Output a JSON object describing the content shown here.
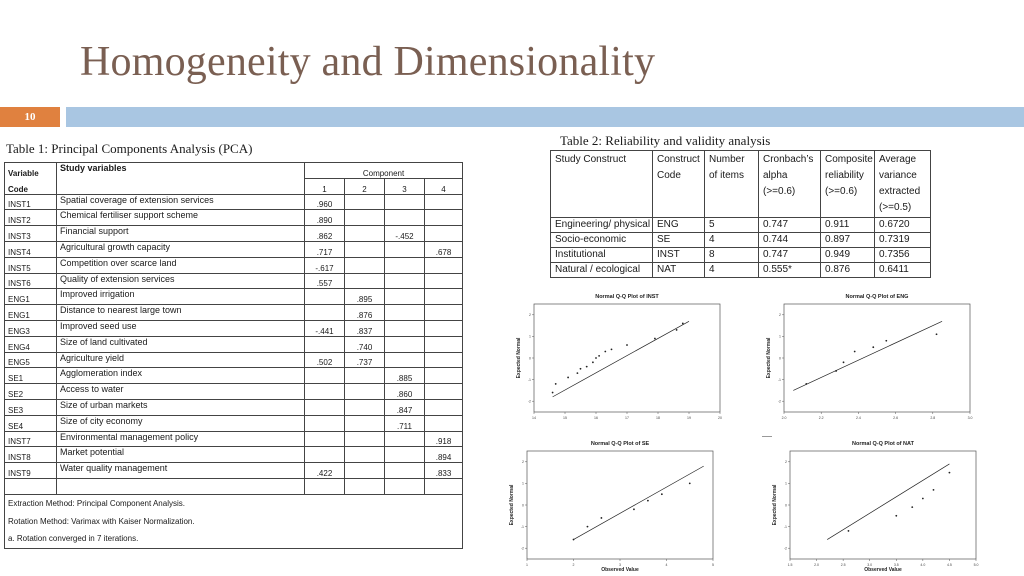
{
  "slide": {
    "title": "Homogeneity and Dimensionality",
    "number": "10"
  },
  "pca": {
    "caption": "Table 1: Principal Components Analysis (PCA)",
    "header": {
      "variable": "Variable",
      "code": "Code",
      "study": "Study variables",
      "component": "Component",
      "cols": [
        "1",
        "2",
        "3",
        "4"
      ]
    },
    "rows": [
      {
        "code": "INST1",
        "label": "Spatial coverage of extension services",
        "vals": [
          ".960",
          "",
          "",
          ""
        ]
      },
      {
        "code": "INST2",
        "label": "Chemical fertiliser support scheme",
        "vals": [
          ".890",
          "",
          "",
          ""
        ]
      },
      {
        "code": "INST3",
        "label": "Financial support",
        "vals": [
          ".862",
          "",
          "-.452",
          ""
        ]
      },
      {
        "code": "INST4",
        "label": "Agricultural growth capacity",
        "vals": [
          ".717",
          "",
          "",
          ".678"
        ]
      },
      {
        "code": "INST5",
        "label": "Competition over scarce land",
        "vals": [
          "-.617",
          "",
          "",
          ""
        ]
      },
      {
        "code": "INST6",
        "label": "Quality of extension services",
        "vals": [
          ".557",
          "",
          "",
          ""
        ]
      },
      {
        "code": "ENG1",
        "label": "Improved irrigation",
        "vals": [
          "",
          ".895",
          "",
          ""
        ]
      },
      {
        "code": "ENG1",
        "label": "Distance to nearest large town",
        "vals": [
          "",
          ".876",
          "",
          ""
        ]
      },
      {
        "code": "ENG3",
        "label": "Improved seed use",
        "vals": [
          "-.441",
          ".837",
          "",
          ""
        ]
      },
      {
        "code": "ENG4",
        "label": "Size of land cultivated",
        "vals": [
          "",
          ".740",
          "",
          ""
        ]
      },
      {
        "code": "ENG5",
        "label": "Agriculture yield",
        "vals": [
          ".502",
          ".737",
          "",
          ""
        ]
      },
      {
        "code": "SE1",
        "label": "Agglomeration index",
        "vals": [
          "",
          "",
          ".885",
          ""
        ]
      },
      {
        "code": "SE2",
        "label": "Access to water",
        "vals": [
          "",
          "",
          ".860",
          ""
        ]
      },
      {
        "code": "SE3",
        "label": "Size of urban markets",
        "vals": [
          "",
          "",
          ".847",
          ""
        ]
      },
      {
        "code": "SE4",
        "label": "Size of city economy",
        "vals": [
          "",
          "",
          ".711",
          ""
        ]
      },
      {
        "code": "INST7",
        "label": "Environmental management policy",
        "vals": [
          "",
          "",
          "",
          ".918"
        ]
      },
      {
        "code": "INST8",
        "label": "Market potential",
        "vals": [
          "",
          "",
          "",
          ".894"
        ]
      },
      {
        "code": "INST9",
        "label": "Water quality management",
        "vals": [
          ".422",
          "",
          "",
          ".833"
        ]
      }
    ],
    "notes": [
      "Extraction Method: Principal Component Analysis.",
      "Rotation Method: Varimax with Kaiser Normalization.",
      "a. Rotation converged in 7 iterations."
    ]
  },
  "reliability": {
    "caption": "Table 2: Reliability and validity analysis",
    "headers": [
      [
        "Study Construct"
      ],
      [
        "Construct",
        "Code"
      ],
      [
        "Number",
        "of items"
      ],
      [
        "Cronbach’s",
        "alpha",
        "(>=0.6)"
      ],
      [
        "Composite",
        "reliability",
        "(>=0.6)"
      ],
      [
        "Average",
        "variance",
        "extracted",
        "(>=0.5)"
      ]
    ],
    "rows": [
      [
        "Engineering/ physical",
        "ENG",
        "5",
        "0.747",
        "0.911",
        "0.6720"
      ],
      [
        "Socio-economic",
        "SE",
        "4",
        "0.744",
        "0.897",
        "0.7319"
      ],
      [
        "Institutional",
        "INST",
        "8",
        "0.747",
        "0.949",
        "0.7356"
      ],
      [
        "Natural / ecological",
        "NAT",
        "4",
        "0.555*",
        "0.876",
        "0.6411"
      ]
    ]
  },
  "chart_data": [
    {
      "type": "scatter",
      "title": "Normal Q-Q Plot of INST",
      "xlabel": "",
      "ylabel": "Expected Normal",
      "xlim": [
        14,
        20
      ],
      "ylim": [
        -2.5,
        2.5
      ],
      "xticks": [
        "14",
        "15",
        "16",
        "17",
        "18",
        "19",
        "20"
      ],
      "yticks": [
        "-2",
        "-1",
        "0",
        "1",
        "2"
      ],
      "line": [
        [
          14.6,
          -1.8
        ],
        [
          19.0,
          1.7
        ]
      ],
      "points": [
        [
          14.6,
          -1.6
        ],
        [
          14.7,
          -1.2
        ],
        [
          15.1,
          -0.9
        ],
        [
          15.4,
          -0.7
        ],
        [
          15.5,
          -0.5
        ],
        [
          15.7,
          -0.4
        ],
        [
          15.9,
          -0.2
        ],
        [
          16.0,
          0.0
        ],
        [
          16.1,
          0.1
        ],
        [
          16.3,
          0.3
        ],
        [
          16.5,
          0.4
        ],
        [
          17.0,
          0.6
        ],
        [
          17.9,
          0.9
        ],
        [
          18.6,
          1.3
        ],
        [
          18.8,
          1.6
        ]
      ]
    },
    {
      "type": "scatter",
      "title": "Normal Q-Q Plot of ENG",
      "xlabel": "",
      "ylabel": "Expected Normal",
      "xlim": [
        2.0,
        3.0
      ],
      "ylim": [
        -2.5,
        2.5
      ],
      "xticks": [
        "2.0",
        "2.2",
        "2.4",
        "2.6",
        "2.8",
        "3.0"
      ],
      "yticks": [
        "-2",
        "-1",
        "0",
        "1",
        "2"
      ],
      "line": [
        [
          2.05,
          -1.5
        ],
        [
          2.85,
          1.7
        ]
      ],
      "points": [
        [
          2.12,
          -1.2
        ],
        [
          2.28,
          -0.6
        ],
        [
          2.32,
          -0.2
        ],
        [
          2.38,
          0.3
        ],
        [
          2.48,
          0.5
        ],
        [
          2.55,
          0.8
        ],
        [
          2.82,
          1.1
        ]
      ]
    },
    {
      "type": "scatter",
      "title": "Normal Q-Q Plot of SE",
      "xlabel": "Observed Value",
      "ylabel": "Expected Normal",
      "xlim": [
        1,
        5
      ],
      "ylim": [
        -2.5,
        2.5
      ],
      "xticks": [
        "1",
        "2",
        "3",
        "4",
        "5"
      ],
      "yticks": [
        "-2",
        "-1",
        "0",
        "1",
        "2"
      ],
      "line": [
        [
          2.0,
          -1.6
        ],
        [
          4.8,
          1.8
        ]
      ],
      "points": [
        [
          2.0,
          -1.6
        ],
        [
          2.3,
          -1.0
        ],
        [
          2.6,
          -0.6
        ],
        [
          3.3,
          -0.2
        ],
        [
          3.6,
          0.2
        ],
        [
          3.9,
          0.5
        ],
        [
          4.5,
          1.0
        ]
      ]
    },
    {
      "type": "scatter",
      "title": "Normal Q-Q Plot of NAT",
      "xlabel": "Observed Value",
      "ylabel": "Expected Normal",
      "xlim": [
        1.5,
        5.0
      ],
      "ylim": [
        -2.5,
        2.5
      ],
      "xticks": [
        "1.5",
        "2.0",
        "2.5",
        "3.0",
        "3.5",
        "4.0",
        "4.5",
        "5.0"
      ],
      "yticks": [
        "-2",
        "-1",
        "0",
        "1",
        "2"
      ],
      "line": [
        [
          2.2,
          -1.6
        ],
        [
          4.5,
          1.9
        ]
      ],
      "points": [
        [
          2.6,
          -1.2
        ],
        [
          3.5,
          -0.5
        ],
        [
          3.8,
          -0.1
        ],
        [
          4.0,
          0.3
        ],
        [
          4.2,
          0.7
        ],
        [
          4.5,
          1.5
        ]
      ]
    }
  ]
}
